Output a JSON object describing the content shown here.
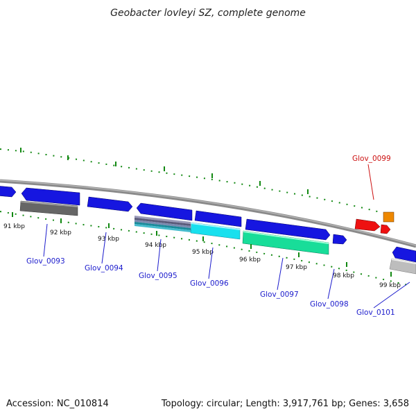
{
  "title": "Geobacter lovleyi SZ, complete genome",
  "footer": {
    "accession": "Accession: NC_010814",
    "summary": "Topology: circular; Length: 3,917,761 bp; Genes: 3,658"
  },
  "colors": {
    "backbone": "#8a8a8a",
    "tick": "#118811",
    "gene_blue": "#1616e0",
    "gene_red": "#ee1111",
    "gene_orange": "#ee8800",
    "label_blue": "#1a1acc",
    "label_red": "#cc1111"
  },
  "kbp_ticks": [
    "91 kbp",
    "92 kbp",
    "93 kbp",
    "94 kbp",
    "95 kbp",
    "96 kbp",
    "97 kbp",
    "98 kbp",
    "99 kbp"
  ],
  "gene_labels": [
    {
      "text": "Glov_0093",
      "color": "blue"
    },
    {
      "text": "Glov_0094",
      "color": "blue"
    },
    {
      "text": "Glov_0095",
      "color": "blue"
    },
    {
      "text": "Glov_0096",
      "color": "blue"
    },
    {
      "text": "Glov_0097",
      "color": "blue"
    },
    {
      "text": "Glov_0098",
      "color": "blue"
    },
    {
      "text": "Glov_0099",
      "color": "red"
    },
    {
      "text": "Glov_0101",
      "color": "blue"
    }
  ]
}
